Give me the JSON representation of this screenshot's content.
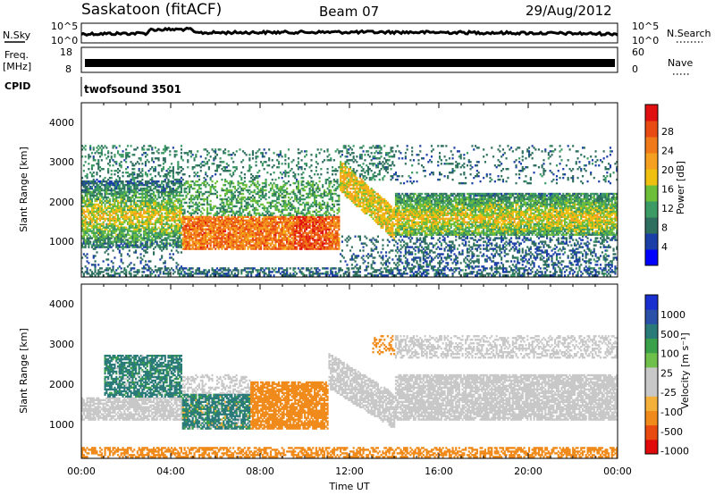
{
  "header": {
    "station": "Saskatoon (fitACF)",
    "beam": "Beam 07",
    "date": "29/Aug/2012"
  },
  "noise_panel": {
    "left_label": "N.Sky",
    "left_ticks": [
      "10^5",
      "10^0"
    ],
    "right_ticks": [
      "10^5",
      "10^0"
    ],
    "right_label": "N.Search",
    "right_legend_line": "dotted"
  },
  "freq_panel": {
    "left_label_1": "Freq.",
    "left_label_2": "[MHz]",
    "left_ticks": [
      "18",
      "8"
    ],
    "right_ticks": [
      "60",
      "0"
    ],
    "right_label": "Nave",
    "right_legend_line": "dotted"
  },
  "cpid_panel": {
    "label": "CPID",
    "value": "twofsound 3501"
  },
  "power_panel": {
    "ylabel": "Slant Range [km]",
    "yticks": [
      "4000",
      "3000",
      "2000",
      "1000"
    ],
    "colorbar_label": "Power [dB]",
    "colorbar_ticks": [
      "28",
      "24",
      "20",
      "16",
      "12",
      "8",
      "4"
    ],
    "colorbar_colors": [
      "#0000ff",
      "#1b3fa7",
      "#2e6f5f",
      "#3c9a64",
      "#6dbf3a",
      "#f0c010",
      "#f5a020",
      "#f07a1a",
      "#e84b14",
      "#e01010"
    ]
  },
  "velocity_panel": {
    "ylabel": "Slant Range [km]",
    "yticks": [
      "4000",
      "3000",
      "2000",
      "1000"
    ],
    "colorbar_label": "Velocity [m s⁻¹]",
    "colorbar_ticks": [
      "1000",
      "500",
      "100",
      "25",
      "-25",
      "-100",
      "-500",
      "-1000"
    ],
    "colorbar_colors": [
      "#e00a0a",
      "#e94a10",
      "#f08a1a",
      "#f3b03a",
      "#c8c8c8",
      "#c8c8c8",
      "#6fc04a",
      "#3aa04a",
      "#2a7a7a",
      "#2a50a8",
      "#1a2fd0"
    ]
  },
  "xaxis": {
    "label": "Time UT",
    "ticks": [
      "00:00",
      "04:00",
      "08:00",
      "12:00",
      "16:00",
      "20:00",
      "00:00"
    ]
  },
  "chart_data": [
    {
      "type": "heatmap",
      "title": "Power",
      "xlabel": "Time UT",
      "ylabel": "Slant Range [km]",
      "xlim": [
        0,
        24
      ],
      "ylim": [
        180,
        4600
      ],
      "colorbar": {
        "label": "Power [dB]",
        "range": [
          0,
          32
        ],
        "ticks": [
          4,
          8,
          12,
          16,
          20,
          24,
          28
        ]
      },
      "features": [
        {
          "time_range": [
            0,
            4.5
          ],
          "range_km": [
            1000,
            2600
          ],
          "power_db": 18
        },
        {
          "time_range": [
            4.5,
            11.5
          ],
          "range_km": [
            850,
            1700
          ],
          "power_db": 26
        },
        {
          "time_range": [
            12,
            14
          ],
          "range_km": [
            1400,
            2500
          ],
          "power_db": 20
        },
        {
          "time_range": [
            14,
            24
          ],
          "range_km": [
            1200,
            2300
          ],
          "power_db": 20
        }
      ]
    },
    {
      "type": "heatmap",
      "title": "Velocity",
      "xlabel": "Time UT",
      "ylabel": "Slant Range [km]",
      "xlim": [
        0,
        24
      ],
      "ylim": [
        180,
        4600
      ],
      "colorbar": {
        "label": "Velocity [m s-1]",
        "ticks": [
          1000,
          500,
          100,
          25,
          -25,
          -100,
          -500,
          -1000
        ]
      },
      "features": [
        {
          "time_range": [
            1,
            4
          ],
          "range_km": [
            1800,
            2700
          ],
          "velocity": 300
        },
        {
          "time_range": [
            4.5,
            7.5
          ],
          "range_km": [
            900,
            1800
          ],
          "velocity": 200
        },
        {
          "time_range": [
            7.5,
            11
          ],
          "range_km": [
            900,
            2100
          ],
          "velocity": -300
        },
        {
          "time_range": [
            12,
            24
          ],
          "range_km": [
            1100,
            2300
          ],
          "velocity": 0
        }
      ]
    }
  ]
}
